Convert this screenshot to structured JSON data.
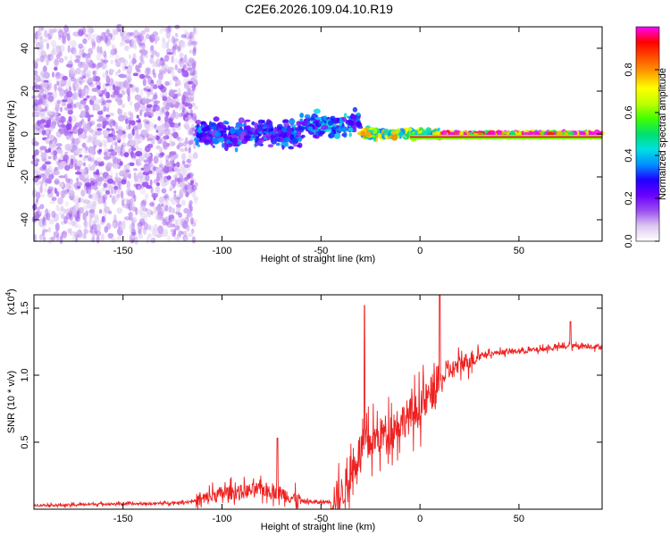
{
  "title": "C2E6.2026.109.04.10.R19",
  "chart_data": [
    {
      "type": "heatmap",
      "name": "spectrogram",
      "xlabel": "Height of straight line (km)",
      "ylabel": "Frequency (Hz)",
      "xlim": [
        -195,
        92
      ],
      "ylim": [
        -50,
        50
      ],
      "xticks": [
        -150,
        -100,
        -50,
        0,
        50
      ],
      "xtick_labels": [
        "-150",
        "-100",
        "-50",
        "0",
        "50"
      ],
      "yticks": [
        -40,
        -20,
        0,
        20,
        40
      ],
      "ytick_labels": [
        "-40",
        "-20",
        "0",
        "20",
        "40"
      ],
      "colorbar": {
        "label": "Normalized spectral amplitude",
        "range": [
          0,
          1
        ],
        "ticks": [
          0.0,
          0.2,
          0.4,
          0.6,
          0.8
        ],
        "tick_labels": [
          "0.0",
          "0.2",
          "0.4",
          "0.6",
          "0.8"
        ],
        "colors": [
          "#ffffff",
          "#dcc8f0",
          "#9a4cf0",
          "#6a00ff",
          "#2000ff",
          "#0090ff",
          "#00e0e0",
          "#00e070",
          "#40ff00",
          "#c0ff00",
          "#ffff00",
          "#ffa000",
          "#ff5000",
          "#ff0000",
          "#ff00ff"
        ]
      },
      "regions": [
        {
          "x_range": [
            -195,
            -113
          ],
          "freq_spread_hz": 50,
          "amplitude": 0.12,
          "description": "noisy broadband"
        },
        {
          "x_range": [
            -113,
            -60
          ],
          "freq_spread_hz": 8,
          "amplitude": 0.3
        },
        {
          "x_range": [
            -60,
            -30
          ],
          "freq_spread_hz": 8,
          "amplitude": 0.35
        },
        {
          "x_range": [
            -30,
            10
          ],
          "freq_spread_hz": 3,
          "amplitude": 0.65
        },
        {
          "x_range": [
            10,
            92
          ],
          "freq_spread_hz": 1,
          "amplitude": 0.95,
          "description": "steady tone near 0 Hz"
        }
      ]
    },
    {
      "type": "line",
      "name": "snr",
      "xlabel": "Height of straight line (km)",
      "ylabel": "SNR (10 * v/v)",
      "y_scale_label": "(x10",
      "y_scale_exponent": "4",
      "xlim": [
        -195,
        92
      ],
      "ylim": [
        0,
        1.6
      ],
      "xticks": [
        -150,
        -100,
        -50,
        0,
        50
      ],
      "xtick_labels": [
        "-150",
        "-100",
        "-50",
        "0",
        "50"
      ],
      "yticks": [
        0.5,
        1.0,
        1.5
      ],
      "ytick_labels": [
        "0.5",
        "1.0",
        "1.5"
      ],
      "color": "#ee2020",
      "x": [
        -195,
        -180,
        -160,
        -140,
        -120,
        -110,
        -100,
        -90,
        -80,
        -70,
        -60,
        -50,
        -45,
        -40,
        -35,
        -30,
        -25,
        -20,
        -15,
        -10,
        -5,
        0,
        5,
        10,
        15,
        20,
        30,
        40,
        50,
        60,
        70,
        80,
        92
      ],
      "y": [
        0.03,
        0.03,
        0.04,
        0.04,
        0.05,
        0.07,
        0.12,
        0.13,
        0.15,
        0.12,
        0.06,
        0.05,
        0.06,
        0.1,
        0.25,
        0.45,
        0.5,
        0.55,
        0.6,
        0.65,
        0.7,
        0.75,
        0.85,
        0.95,
        1.03,
        1.08,
        1.15,
        1.17,
        1.18,
        1.19,
        1.21,
        1.22,
        1.21
      ],
      "spikes": [
        {
          "x": -72,
          "y": 0.53
        },
        {
          "x": -28,
          "y": 1.52
        },
        {
          "x": 10,
          "y": 1.6
        },
        {
          "x": 76,
          "y": 1.4
        }
      ],
      "noise_amplitude": [
        {
          "x_range": [
            -195,
            -113
          ],
          "amp": 0.02
        },
        {
          "x_range": [
            -113,
            -60
          ],
          "amp": 0.12
        },
        {
          "x_range": [
            -60,
            -45
          ],
          "amp": 0.03
        },
        {
          "x_range": [
            -45,
            10
          ],
          "amp": 0.3
        },
        {
          "x_range": [
            10,
            30
          ],
          "amp": 0.15
        },
        {
          "x_range": [
            30,
            92
          ],
          "amp": 0.04
        }
      ]
    }
  ]
}
